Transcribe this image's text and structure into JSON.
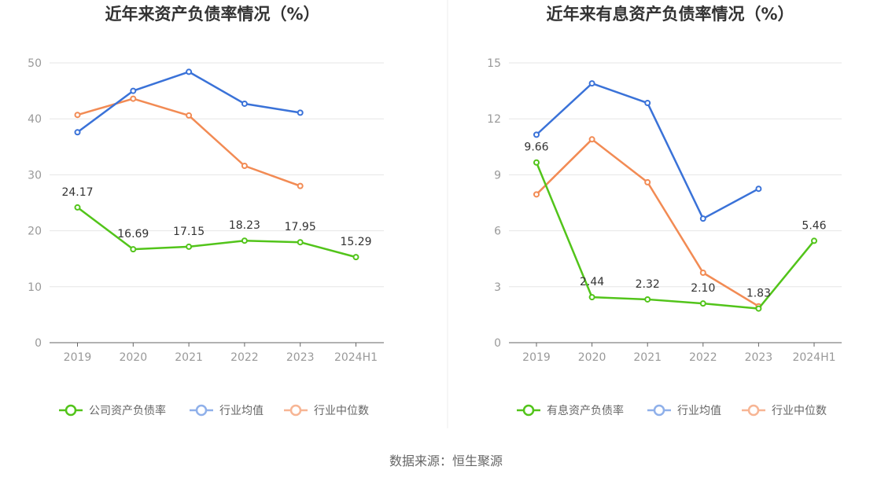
{
  "chart_data": [
    {
      "type": "line",
      "title": "近年来资产负债率情况（%）",
      "categories": [
        "2019",
        "2020",
        "2021",
        "2022",
        "2023",
        "2024H1"
      ],
      "ylim": [
        0,
        50
      ],
      "yticks": [
        0,
        10,
        20,
        30,
        40,
        50
      ],
      "grid": true,
      "legend_position": "bottom",
      "series": [
        {
          "name": "公司资产负债率",
          "color": "#52c41a",
          "values": [
            24.17,
            16.69,
            17.15,
            18.23,
            17.95,
            15.29
          ],
          "labels": [
            "24.17",
            "16.69",
            "17.15",
            "18.23",
            "17.95",
            "15.29"
          ]
        },
        {
          "name": "行业均值",
          "color": "#3a72d8",
          "values": [
            37.6,
            45.0,
            48.4,
            42.7,
            41.1,
            null
          ]
        },
        {
          "name": "行业中位数",
          "color": "#f28b54",
          "values": [
            40.7,
            43.6,
            40.6,
            31.6,
            28.0,
            null
          ]
        }
      ]
    },
    {
      "type": "line",
      "title": "近年来有息资产负债率情况（%）",
      "categories": [
        "2019",
        "2020",
        "2021",
        "2022",
        "2023",
        "2024H1"
      ],
      "ylim": [
        0,
        15
      ],
      "yticks": [
        0,
        3,
        6,
        9,
        12,
        15
      ],
      "grid": true,
      "legend_position": "bottom",
      "series": [
        {
          "name": "有息资产负债率",
          "color": "#52c41a",
          "values": [
            9.66,
            2.44,
            2.32,
            2.1,
            1.83,
            5.46
          ],
          "labels": [
            "9.66",
            "2.44",
            "2.32",
            "2.10",
            "1.83",
            "5.46"
          ]
        },
        {
          "name": "行业均值",
          "color": "#3a72d8",
          "values": [
            11.15,
            13.9,
            12.85,
            6.65,
            8.25,
            null
          ]
        },
        {
          "name": "行业中位数",
          "color": "#f28b54",
          "values": [
            7.95,
            10.9,
            8.6,
            3.75,
            1.95,
            null
          ]
        }
      ]
    }
  ],
  "footer": {
    "source": "数据来源：恒生聚源"
  }
}
